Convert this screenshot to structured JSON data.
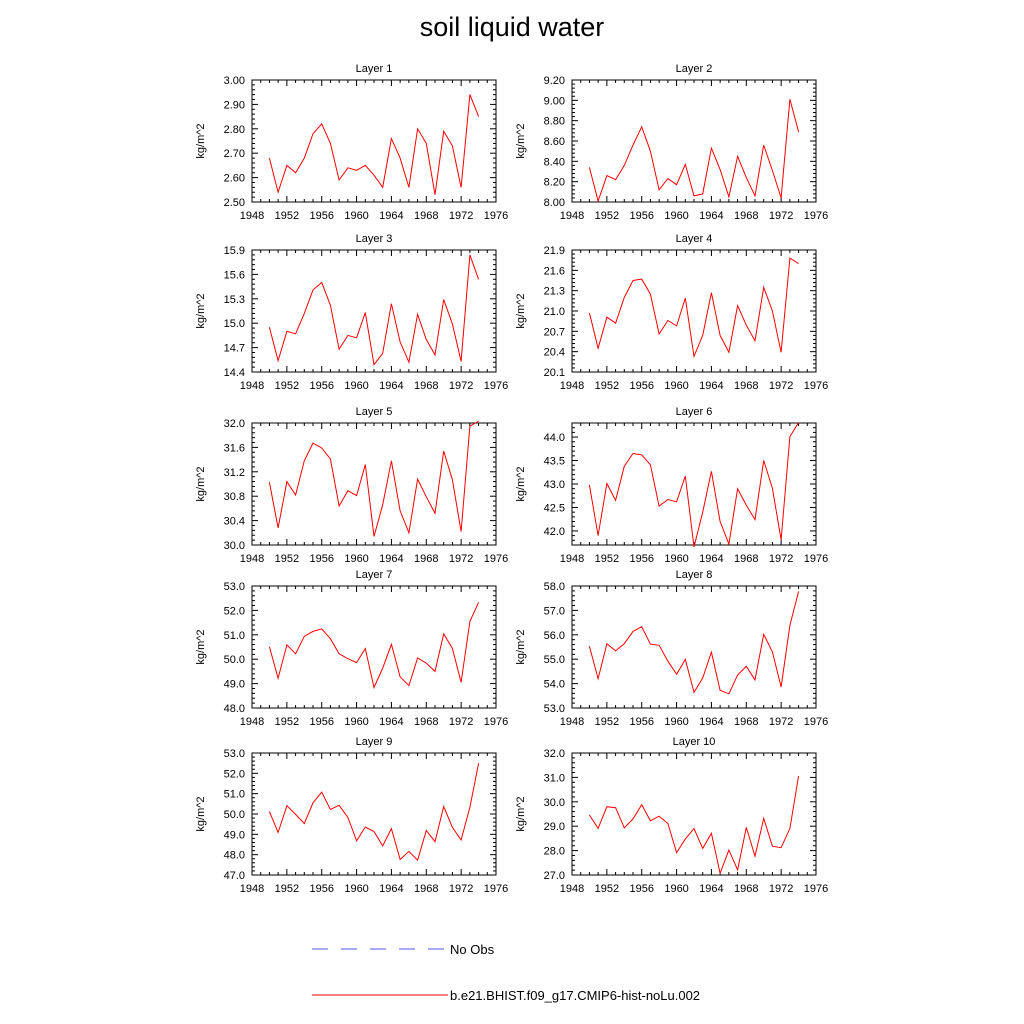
{
  "title": "soil liquid water",
  "colors": {
    "model": "#ff0000",
    "obs": "#5050ff",
    "axis": "#000000"
  },
  "legend": [
    {
      "label": "No Obs",
      "style": "dashed",
      "color": "#5050ff"
    },
    {
      "label": "b.e21.BHIST.f09_g17.CMIP6-hist-noLu.002",
      "style": "solid",
      "color": "#ff0000"
    }
  ],
  "chart_data": [
    {
      "type": "line",
      "title": "Layer 1",
      "xlabel": "",
      "ylabel": "kg/m^2",
      "xlim": [
        1948,
        1976
      ],
      "ylim": [
        2.5,
        3.0
      ],
      "xticks": [
        "1948",
        "1952",
        "1956",
        "1960",
        "1964",
        "1968",
        "1972",
        "1976"
      ],
      "yticks": [
        "2.50",
        "2.60",
        "2.70",
        "2.80",
        "2.90",
        "3.00"
      ],
      "series": [
        {
          "name": "b.e21.BHIST.f09_g17.CMIP6-hist-noLu.002",
          "x": [
            1950,
            1951,
            1952,
            1953,
            1954,
            1955,
            1956,
            1957,
            1958,
            1959,
            1960,
            1961,
            1962,
            1963,
            1964,
            1965,
            1966,
            1967,
            1968,
            1969,
            1970,
            1971,
            1972,
            1973,
            1974
          ],
          "y": [
            2.68,
            2.54,
            2.65,
            2.62,
            2.68,
            2.78,
            2.82,
            2.74,
            2.59,
            2.64,
            2.63,
            2.65,
            2.61,
            2.56,
            2.76,
            2.68,
            2.56,
            2.8,
            2.74,
            2.53,
            2.79,
            2.73,
            2.56,
            2.94,
            2.85
          ]
        }
      ]
    },
    {
      "type": "line",
      "title": "Layer 2",
      "xlabel": "",
      "ylabel": "kg/m^2",
      "xlim": [
        1948,
        1976
      ],
      "ylim": [
        8.0,
        9.2
      ],
      "xticks": [
        "1948",
        "1952",
        "1956",
        "1960",
        "1964",
        "1968",
        "1972",
        "1976"
      ],
      "yticks": [
        "8.00",
        "8.20",
        "8.40",
        "8.60",
        "8.80",
        "9.00",
        "9.20"
      ],
      "series": [
        {
          "name": "b.e21.BHIST.f09_g17.CMIP6-hist-noLu.002",
          "x": [
            1950,
            1951,
            1952,
            1953,
            1954,
            1955,
            1956,
            1957,
            1958,
            1959,
            1960,
            1961,
            1962,
            1963,
            1964,
            1965,
            1966,
            1967,
            1968,
            1969,
            1970,
            1971,
            1972,
            1973,
            1974
          ],
          "y": [
            8.34,
            8.01,
            8.26,
            8.22,
            8.36,
            8.56,
            8.74,
            8.5,
            8.12,
            8.23,
            8.17,
            8.37,
            8.06,
            8.08,
            8.53,
            8.32,
            8.05,
            8.45,
            8.24,
            8.06,
            8.56,
            8.31,
            8.04,
            9.01,
            8.69
          ]
        }
      ]
    },
    {
      "type": "line",
      "title": "Layer 3",
      "xlabel": "",
      "ylabel": "kg/m^2",
      "xlim": [
        1948,
        1976
      ],
      "ylim": [
        14.4,
        15.9
      ],
      "xticks": [
        "1948",
        "1952",
        "1956",
        "1960",
        "1964",
        "1968",
        "1972",
        "1976"
      ],
      "yticks": [
        "14.4",
        "14.7",
        "15.0",
        "15.3",
        "15.6",
        "15.9"
      ],
      "series": [
        {
          "name": "b.e21.BHIST.f09_g17.CMIP6-hist-noLu.002",
          "x": [
            1950,
            1951,
            1952,
            1953,
            1954,
            1955,
            1956,
            1957,
            1958,
            1959,
            1960,
            1961,
            1962,
            1963,
            1964,
            1965,
            1966,
            1967,
            1968,
            1969,
            1970,
            1971,
            1972,
            1973,
            1974
          ],
          "y": [
            14.95,
            14.54,
            14.9,
            14.87,
            15.12,
            15.41,
            15.5,
            15.22,
            14.68,
            14.85,
            14.82,
            15.13,
            14.49,
            14.63,
            15.24,
            14.77,
            14.52,
            15.11,
            14.8,
            14.61,
            15.29,
            14.99,
            14.53,
            15.84,
            15.54
          ]
        }
      ]
    },
    {
      "type": "line",
      "title": "Layer 4",
      "xlabel": "",
      "ylabel": "kg/m^2",
      "xlim": [
        1948,
        1976
      ],
      "ylim": [
        20.1,
        21.9
      ],
      "xticks": [
        "1948",
        "1952",
        "1956",
        "1960",
        "1964",
        "1968",
        "1972",
        "1976"
      ],
      "yticks": [
        "20.1",
        "20.4",
        "20.7",
        "21.0",
        "21.3",
        "21.6",
        "21.9"
      ],
      "series": [
        {
          "name": "b.e21.BHIST.f09_g17.CMIP6-hist-noLu.002",
          "x": [
            1950,
            1951,
            1952,
            1953,
            1954,
            1955,
            1956,
            1957,
            1958,
            1959,
            1960,
            1961,
            1962,
            1963,
            1964,
            1965,
            1966,
            1967,
            1968,
            1969,
            1970,
            1971,
            1972,
            1973,
            1974
          ],
          "y": [
            20.97,
            20.45,
            20.91,
            20.82,
            21.2,
            21.45,
            21.47,
            21.25,
            20.66,
            20.86,
            20.78,
            21.19,
            20.33,
            20.64,
            21.27,
            20.64,
            20.39,
            21.08,
            20.79,
            20.56,
            21.35,
            21.0,
            20.39,
            21.78,
            21.7
          ]
        }
      ]
    },
    {
      "type": "line",
      "title": "Layer 5",
      "xlabel": "",
      "ylabel": "kg/m^2",
      "xlim": [
        1948,
        1976
      ],
      "ylim": [
        30.0,
        32.0
      ],
      "xticks": [
        "1948",
        "1952",
        "1956",
        "1960",
        "1964",
        "1968",
        "1972",
        "1976"
      ],
      "yticks": [
        "30.0",
        "30.4",
        "30.8",
        "31.2",
        "31.6",
        "32.0"
      ],
      "series": [
        {
          "name": "b.e21.BHIST.f09_g17.CMIP6-hist-noLu.002",
          "x": [
            1950,
            1951,
            1952,
            1953,
            1954,
            1955,
            1956,
            1957,
            1958,
            1959,
            1960,
            1961,
            1962,
            1963,
            1964,
            1965,
            1966,
            1967,
            1968,
            1969,
            1970,
            1971,
            1972,
            1973,
            1974
          ],
          "y": [
            31.03,
            30.28,
            31.04,
            30.82,
            31.38,
            31.67,
            31.59,
            31.41,
            30.64,
            30.89,
            30.81,
            31.32,
            30.14,
            30.66,
            31.38,
            30.56,
            30.2,
            31.08,
            30.79,
            30.52,
            31.54,
            31.07,
            30.22,
            31.95,
            32.03
          ]
        }
      ]
    },
    {
      "type": "line",
      "title": "Layer 6",
      "xlabel": "",
      "ylabel": "kg/m^2",
      "xlim": [
        1948,
        1976
      ],
      "ylim": [
        41.7,
        44.3
      ],
      "xticks": [
        "1948",
        "1952",
        "1956",
        "1960",
        "1964",
        "1968",
        "1972",
        "1976"
      ],
      "yticks": [
        "42.0",
        "42.5",
        "43.0",
        "43.5",
        "44.0"
      ],
      "series": [
        {
          "name": "b.e21.BHIST.f09_g17.CMIP6-hist-noLu.002",
          "x": [
            1950,
            1951,
            1952,
            1953,
            1954,
            1955,
            1956,
            1957,
            1958,
            1959,
            1960,
            1961,
            1962,
            1963,
            1964,
            1965,
            1966,
            1967,
            1968,
            1969,
            1970,
            1971,
            1972,
            1973,
            1974
          ],
          "y": [
            42.98,
            41.9,
            43.01,
            42.65,
            43.38,
            43.65,
            43.62,
            43.41,
            42.53,
            42.67,
            42.62,
            43.17,
            41.66,
            42.4,
            43.27,
            42.2,
            41.72,
            42.9,
            42.55,
            42.24,
            43.5,
            42.91,
            41.81,
            44.01,
            44.31
          ]
        }
      ]
    },
    {
      "type": "line",
      "title": "Layer 7",
      "xlabel": "",
      "ylabel": "kg/m^2",
      "xlim": [
        1948,
        1976
      ],
      "ylim": [
        48.0,
        53.0
      ],
      "xticks": [
        "1948",
        "1952",
        "1956",
        "1960",
        "1964",
        "1968",
        "1972",
        "1976"
      ],
      "yticks": [
        "48.0",
        "49.0",
        "50.0",
        "51.0",
        "52.0",
        "53.0"
      ],
      "series": [
        {
          "name": "b.e21.BHIST.f09_g17.CMIP6-hist-noLu.002",
          "x": [
            1950,
            1951,
            1952,
            1953,
            1954,
            1955,
            1956,
            1957,
            1958,
            1959,
            1960,
            1961,
            1962,
            1963,
            1964,
            1965,
            1966,
            1967,
            1968,
            1969,
            1970,
            1971,
            1972,
            1973,
            1974
          ],
          "y": [
            50.51,
            49.22,
            50.59,
            50.22,
            50.94,
            51.14,
            51.24,
            50.84,
            50.22,
            50.02,
            49.86,
            50.44,
            48.84,
            49.63,
            50.61,
            49.28,
            48.92,
            50.05,
            49.84,
            49.5,
            51.04,
            50.44,
            49.05,
            51.55,
            52.33
          ]
        }
      ]
    },
    {
      "type": "line",
      "title": "Layer 8",
      "xlabel": "",
      "ylabel": "kg/m^2",
      "xlim": [
        1948,
        1976
      ],
      "ylim": [
        53.0,
        58.0
      ],
      "xticks": [
        "1948",
        "1952",
        "1956",
        "1960",
        "1964",
        "1968",
        "1972",
        "1976"
      ],
      "yticks": [
        "53.0",
        "54.0",
        "55.0",
        "56.0",
        "57.0",
        "58.0"
      ],
      "series": [
        {
          "name": "b.e21.BHIST.f09_g17.CMIP6-hist-noLu.002",
          "x": [
            1950,
            1951,
            1952,
            1953,
            1954,
            1955,
            1956,
            1957,
            1958,
            1959,
            1960,
            1961,
            1962,
            1963,
            1964,
            1965,
            1966,
            1967,
            1968,
            1969,
            1970,
            1971,
            1972,
            1973,
            1974
          ],
          "y": [
            55.53,
            54.2,
            55.63,
            55.34,
            55.64,
            56.14,
            56.33,
            55.62,
            55.57,
            54.92,
            54.38,
            54.99,
            53.64,
            54.23,
            55.29,
            53.72,
            53.58,
            54.35,
            54.71,
            54.15,
            56.02,
            55.3,
            53.86,
            56.39,
            57.78
          ]
        }
      ]
    },
    {
      "type": "line",
      "title": "Layer 9",
      "xlabel": "",
      "ylabel": "kg/m^2",
      "xlim": [
        1948,
        1976
      ],
      "ylim": [
        47.0,
        53.0
      ],
      "xticks": [
        "1948",
        "1952",
        "1956",
        "1960",
        "1964",
        "1968",
        "1972",
        "1976"
      ],
      "yticks": [
        "47.0",
        "48.0",
        "49.0",
        "50.0",
        "51.0",
        "52.0",
        "53.0"
      ],
      "series": [
        {
          "name": "b.e21.BHIST.f09_g17.CMIP6-hist-noLu.002",
          "x": [
            1950,
            1951,
            1952,
            1953,
            1954,
            1955,
            1956,
            1957,
            1958,
            1959,
            1960,
            1961,
            1962,
            1963,
            1964,
            1965,
            1966,
            1967,
            1968,
            1969,
            1970,
            1971,
            1972,
            1973,
            1974
          ],
          "y": [
            50.12,
            49.09,
            50.41,
            49.98,
            49.53,
            50.55,
            51.07,
            50.22,
            50.43,
            49.83,
            48.68,
            49.36,
            49.14,
            48.43,
            49.28,
            47.76,
            48.16,
            47.73,
            49.19,
            48.64,
            50.37,
            49.34,
            48.72,
            50.33,
            52.5
          ]
        }
      ]
    },
    {
      "type": "line",
      "title": "Layer 10",
      "xlabel": "",
      "ylabel": "kg/m^2",
      "xlim": [
        1948,
        1976
      ],
      "ylim": [
        27.0,
        32.0
      ],
      "xticks": [
        "1948",
        "1952",
        "1956",
        "1960",
        "1964",
        "1968",
        "1972",
        "1976"
      ],
      "yticks": [
        "27.0",
        "28.0",
        "29.0",
        "30.0",
        "31.0",
        "32.0"
      ],
      "series": [
        {
          "name": "b.e21.BHIST.f09_g17.CMIP6-hist-noLu.002",
          "x": [
            1950,
            1951,
            1952,
            1953,
            1954,
            1955,
            1956,
            1957,
            1958,
            1959,
            1960,
            1961,
            1962,
            1963,
            1964,
            1965,
            1966,
            1967,
            1968,
            1969,
            1970,
            1971,
            1972,
            1973,
            1974
          ],
          "y": [
            29.46,
            28.91,
            29.8,
            29.76,
            28.93,
            29.3,
            29.88,
            29.22,
            29.41,
            29.11,
            27.92,
            28.47,
            28.9,
            28.09,
            28.71,
            27.07,
            28.02,
            27.21,
            28.95,
            27.77,
            29.32,
            28.18,
            28.12,
            28.91,
            31.06
          ]
        }
      ]
    }
  ]
}
